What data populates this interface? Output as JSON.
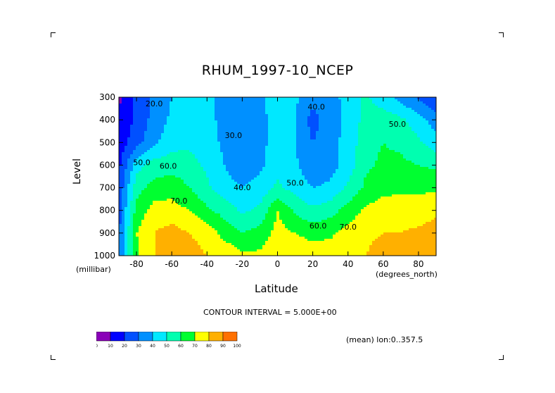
{
  "chart_data": {
    "type": "heatmap",
    "title": "RHUM_1997-10_NCEP",
    "xlabel": "Latitude",
    "ylabel": "Level",
    "x_unit": "(degrees_north)",
    "y_unit": "(millibar)",
    "xlim": [
      -90,
      90
    ],
    "ylim": [
      1000,
      300
    ],
    "x_ticks": [
      -80,
      -60,
      -40,
      -20,
      0,
      20,
      40,
      60,
      80
    ],
    "x_tick_labels": [
      "-80",
      "-60",
      "-40",
      "-20",
      "0",
      "20",
      "40",
      "60",
      "80"
    ],
    "y_ticks": [
      300,
      400,
      500,
      600,
      700,
      800,
      900,
      1000
    ],
    "y_tick_labels": [
      "300",
      "400",
      "500",
      "600",
      "700",
      "800",
      "900",
      "1000"
    ],
    "lat": [
      -90,
      -80,
      -70,
      -60,
      -50,
      -40,
      -30,
      -20,
      -10,
      0,
      10,
      20,
      30,
      40,
      50,
      60,
      70,
      80,
      90
    ],
    "levels": [
      300,
      400,
      500,
      600,
      700,
      800,
      900,
      1000
    ],
    "values": [
      [
        8,
        22,
        32,
        40,
        44,
        42,
        38,
        30,
        36,
        48,
        42,
        34,
        38,
        42,
        52,
        44,
        36,
        28,
        20
      ],
      [
        12,
        22,
        34,
        42,
        44,
        42,
        38,
        30,
        36,
        46,
        40,
        26,
        36,
        42,
        54,
        56,
        52,
        44,
        35
      ],
      [
        14,
        26,
        38,
        46,
        48,
        44,
        38,
        30,
        36,
        46,
        40,
        30,
        36,
        44,
        56,
        60,
        58,
        52,
        44
      ],
      [
        18,
        46,
        54,
        56,
        54,
        48,
        40,
        33,
        38,
        46,
        42,
        32,
        36,
        44,
        58,
        62,
        62,
        60,
        58
      ],
      [
        22,
        56,
        64,
        66,
        60,
        52,
        44,
        40,
        44,
        52,
        46,
        40,
        42,
        52,
        62,
        66,
        68,
        68,
        68
      ],
      [
        25,
        64,
        74,
        74,
        70,
        62,
        56,
        48,
        52,
        70,
        58,
        52,
        56,
        64,
        72,
        76,
        76,
        75,
        78
      ],
      [
        28,
        70,
        80,
        84,
        80,
        76,
        66,
        60,
        64,
        74,
        70,
        66,
        68,
        74,
        78,
        80,
        80,
        82,
        84
      ],
      [
        30,
        68,
        80,
        86,
        84,
        80,
        78,
        72,
        72,
        76,
        78,
        76,
        76,
        78,
        80,
        84,
        86,
        84,
        80
      ]
    ],
    "contour_labels": [
      {
        "text": "20.0",
        "lat": -70,
        "lev": 340
      },
      {
        "text": "30.0",
        "lat": -25,
        "lev": 480
      },
      {
        "text": "40.0",
        "lat": 22,
        "lev": 355
      },
      {
        "text": "50.0",
        "lat": 68,
        "lev": 430
      },
      {
        "text": "50.0",
        "lat": -77,
        "lev": 600
      },
      {
        "text": "60.0",
        "lat": -62,
        "lev": 615
      },
      {
        "text": "40.0",
        "lat": -20,
        "lev": 710
      },
      {
        "text": "50.0",
        "lat": 10,
        "lev": 690
      },
      {
        "text": "70.0",
        "lat": -56,
        "lev": 770
      },
      {
        "text": "60.0",
        "lat": 23,
        "lev": 880
      },
      {
        "text": "70.0",
        "lat": 40,
        "lev": 885
      }
    ],
    "colorbar": {
      "ticks": [
        "0",
        "10",
        "20",
        "30",
        "40",
        "50",
        "60",
        "70",
        "80",
        "90",
        "100"
      ],
      "colors": [
        "#8a00b8",
        "#0000ff",
        "#0050ff",
        "#0090ff",
        "#00e8ff",
        "#00ffb0",
        "#00ff30",
        "#ffff00",
        "#ffb000",
        "#ff7000",
        "#ff2000"
      ]
    }
  },
  "contour_interval": "CONTOUR INTERVAL = 5.000E+00",
  "mean_label": "(mean) lon:0..357.5"
}
